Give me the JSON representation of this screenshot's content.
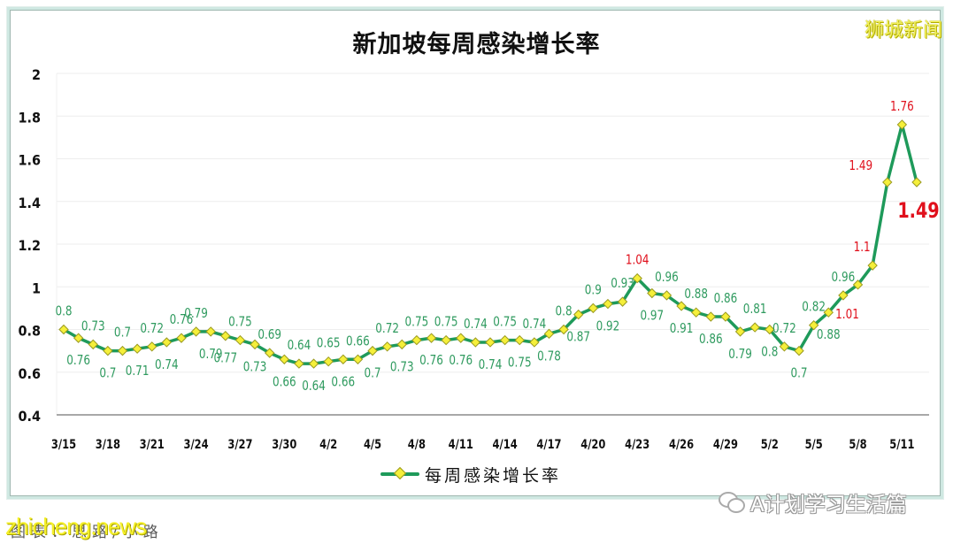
{
  "header": {
    "title": "新加坡每周感染增长率",
    "brand_watermark": "狮城新闻"
  },
  "legend": {
    "label": "每周感染增长率"
  },
  "footer": {
    "watermark_left": "zhicheng.news",
    "caption_left": "图表：思路/小路",
    "watermark_right": "A计划学习生活篇"
  },
  "colors": {
    "line": "#1e9a5a",
    "marker_fill": "#f5ef3a",
    "marker_stroke": "#9a9a20",
    "label_normal": "#2e9a5e",
    "label_highlight": "#e0101c",
    "axis_text": "#111111",
    "gridline": "#eeeeee"
  },
  "chart_data": {
    "type": "line",
    "title": "新加坡每周感染增长率",
    "xlabel": "",
    "ylabel": "",
    "ylim": [
      0.4,
      2
    ],
    "yticks": [
      0.4,
      0.6,
      0.8,
      1,
      1.2,
      1.4,
      1.6,
      1.8,
      2
    ],
    "ytick_labels": [
      "0.4",
      "0.6",
      "0.8",
      "1",
      "1.2",
      "1.4",
      "1.6",
      "1.8",
      "2"
    ],
    "xtick_labels": [
      "3/15",
      "3/18",
      "3/21",
      "3/24",
      "3/27",
      "3/30",
      "4/2",
      "4/5",
      "4/8",
      "4/11",
      "4/14",
      "4/17",
      "4/20",
      "4/23",
      "4/26",
      "4/29",
      "5/2",
      "5/5",
      "5/8",
      "5/11"
    ],
    "grid": true,
    "legend_position": "bottom",
    "x": [
      "3/15",
      "3/16",
      "3/17",
      "3/18",
      "3/19",
      "3/20",
      "3/21",
      "3/22",
      "3/23",
      "3/24",
      "3/25",
      "3/26",
      "3/27",
      "3/28",
      "3/29",
      "3/30",
      "3/31",
      "4/1",
      "4/2",
      "4/3",
      "4/4",
      "4/5",
      "4/6",
      "4/7",
      "4/8",
      "4/9",
      "4/10",
      "4/11",
      "4/12",
      "4/13",
      "4/14",
      "4/15",
      "4/16",
      "4/17",
      "4/18",
      "4/19",
      "4/20",
      "4/21",
      "4/22",
      "4/23",
      "4/24",
      "4/25",
      "4/26",
      "4/27",
      "4/28",
      "4/29",
      "4/30",
      "5/1",
      "5/2",
      "5/3",
      "5/4",
      "5/5",
      "5/6",
      "5/7",
      "5/8",
      "5/9",
      "5/10",
      "5/11",
      "5/12"
    ],
    "series": [
      {
        "name": "每周感染增长率",
        "values": [
          0.8,
          0.76,
          0.73,
          0.7,
          0.7,
          0.71,
          0.72,
          0.74,
          0.76,
          0.79,
          0.79,
          0.77,
          0.75,
          0.73,
          0.69,
          0.66,
          0.64,
          0.64,
          0.65,
          0.66,
          0.66,
          0.7,
          0.72,
          0.73,
          0.75,
          0.76,
          0.75,
          0.76,
          0.74,
          0.74,
          0.75,
          0.75,
          0.74,
          0.78,
          0.8,
          0.87,
          0.9,
          0.92,
          0.93,
          1.04,
          0.97,
          0.96,
          0.91,
          0.88,
          0.86,
          0.86,
          0.79,
          0.81,
          0.8,
          0.72,
          0.7,
          0.82,
          0.88,
          0.96,
          1.01,
          1.1,
          1.49,
          1.76,
          1.49
        ]
      }
    ],
    "data_labels": {
      "label_positions": [
        "above",
        "below",
        "above",
        "below",
        "above",
        "below",
        "above",
        "below",
        "above",
        "above",
        "below",
        "below",
        "above",
        "below",
        "above",
        "below",
        "above",
        "below",
        "above",
        "below",
        "above",
        "below",
        "above",
        "below",
        "above",
        "below",
        "above",
        "below",
        "above",
        "below",
        "above",
        "below",
        "above",
        "below",
        "above",
        "below",
        "above",
        "below",
        "above",
        "above",
        "below",
        "above",
        "below",
        "above",
        "below",
        "above",
        "below",
        "above",
        "below",
        "above",
        "below",
        "above",
        "below",
        "above",
        "below",
        "above",
        "above",
        "above",
        "below"
      ],
      "highlighted_indices": [
        39,
        54,
        55,
        56,
        57,
        58
      ],
      "emphasized_index": 58
    }
  }
}
